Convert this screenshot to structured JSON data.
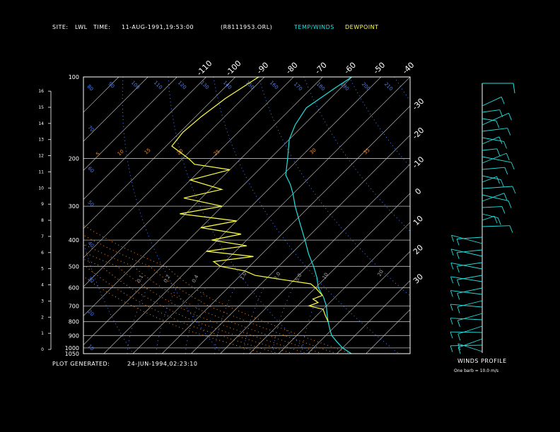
{
  "header": {
    "site_label": "SITE:",
    "site_value": "LWL",
    "time_label": "TIME:",
    "time_value": "11-AUG-1991,19:53:00",
    "file_name": "(R8111953.ORL)",
    "temp_winds_label": "TEMP/WINDS",
    "dewpoint_label": "DEWPOINT"
  },
  "footer": {
    "plot_generated_label": "PLOT GENERATED:",
    "plot_generated_value": "24-JUN-1994,02:23:10"
  },
  "colors": {
    "background": "#000000",
    "frame": "#ffffff",
    "isobar": "#bbbbbb",
    "isotherm": "#cccccc",
    "dry_adiabat": "#4a7cff",
    "moist_adiabat": "#ff8c1a",
    "mixing_ratio": "#8899ff",
    "temperature": "#20e0e0",
    "dewpoint": "#ffff44",
    "wind": "#20e0e0"
  },
  "chart_data": {
    "type": "skew-t",
    "pressure_levels_mb": [
      100,
      200,
      300,
      400,
      500,
      600,
      700,
      800,
      900,
      1000,
      1050
    ],
    "pressure_tick_labels": [
      "100",
      "200",
      "300",
      "400",
      "500",
      "600",
      "700",
      "800",
      "900",
      "1000",
      "1050"
    ],
    "height_km_ticks": [
      "0",
      "1",
      "2",
      "3",
      "4",
      "5",
      "6",
      "7",
      "8",
      "9",
      "10",
      "11",
      "12",
      "13",
      "14",
      "15",
      "16"
    ],
    "isotherm_top_labels_c": [
      "-110",
      "-100",
      "-90",
      "-80",
      "-70",
      "-60",
      "-50",
      "-40"
    ],
    "isotherm_right_labels_c": [
      "-30",
      "-20",
      "-10",
      "0",
      "10",
      "20",
      "30"
    ],
    "dry_adiabat_labels_k": [
      "80",
      "90",
      "100",
      "110",
      "120",
      "130",
      "140",
      "150",
      "160",
      "170",
      "180",
      "190",
      "200",
      "210"
    ],
    "moist_adiabat_labels": [
      "5",
      "10",
      "15",
      "20",
      "25",
      "30",
      "35"
    ],
    "mixing_ratio_labels": [
      "0.1",
      "0.2",
      "0.4",
      "1.0",
      "2.0",
      "5.0",
      "10",
      "20"
    ],
    "temperature_profile": [
      {
        "p": 1050,
        "t": 35
      },
      {
        "p": 1000,
        "t": 30
      },
      {
        "p": 950,
        "t": 26
      },
      {
        "p": 900,
        "t": 22
      },
      {
        "p": 850,
        "t": 19
      },
      {
        "p": 800,
        "t": 16
      },
      {
        "p": 750,
        "t": 13
      },
      {
        "p": 700,
        "t": 10
      },
      {
        "p": 650,
        "t": 6
      },
      {
        "p": 600,
        "t": 1
      },
      {
        "p": 550,
        "t": -3
      },
      {
        "p": 500,
        "t": -8
      },
      {
        "p": 450,
        "t": -14
      },
      {
        "p": 400,
        "t": -20
      },
      {
        "p": 350,
        "t": -27
      },
      {
        "p": 300,
        "t": -35
      },
      {
        "p": 270,
        "t": -40
      },
      {
        "p": 250,
        "t": -44
      },
      {
        "p": 230,
        "t": -49
      },
      {
        "p": 200,
        "t": -54
      },
      {
        "p": 170,
        "t": -60
      },
      {
        "p": 150,
        "t": -63
      },
      {
        "p": 130,
        "t": -65
      },
      {
        "p": 110,
        "t": -62
      },
      {
        "p": 100,
        "t": -60
      }
    ],
    "dewpoint_profile": [
      {
        "p": 800,
        "t": 16
      },
      {
        "p": 760,
        "t": 13
      },
      {
        "p": 720,
        "t": 10
      },
      {
        "p": 700,
        "t": 4
      },
      {
        "p": 680,
        "t": 6
      },
      {
        "p": 660,
        "t": 3
      },
      {
        "p": 640,
        "t": 5
      },
      {
        "p": 600,
        "t": 0
      },
      {
        "p": 580,
        "t": -3
      },
      {
        "p": 560,
        "t": -14
      },
      {
        "p": 540,
        "t": -25
      },
      {
        "p": 520,
        "t": -30
      },
      {
        "p": 500,
        "t": -40
      },
      {
        "p": 480,
        "t": -44
      },
      {
        "p": 460,
        "t": -32
      },
      {
        "p": 440,
        "t": -50
      },
      {
        "p": 420,
        "t": -38
      },
      {
        "p": 400,
        "t": -52
      },
      {
        "p": 380,
        "t": -44
      },
      {
        "p": 360,
        "t": -60
      },
      {
        "p": 340,
        "t": -50
      },
      {
        "p": 320,
        "t": -72
      },
      {
        "p": 300,
        "t": -60
      },
      {
        "p": 280,
        "t": -76
      },
      {
        "p": 260,
        "t": -66
      },
      {
        "p": 240,
        "t": -80
      },
      {
        "p": 220,
        "t": -70
      },
      {
        "p": 210,
        "t": -84
      },
      {
        "p": 200,
        "t": -88
      },
      {
        "p": 180,
        "t": -98
      },
      {
        "p": 160,
        "t": -99
      },
      {
        "p": 140,
        "t": -98
      },
      {
        "p": 120,
        "t": -96
      },
      {
        "p": 100,
        "t": -92
      }
    ],
    "wind_profile_title": "WINDS PROFILE",
    "wind_scale_note": "One barb = 10.0 m/s"
  }
}
